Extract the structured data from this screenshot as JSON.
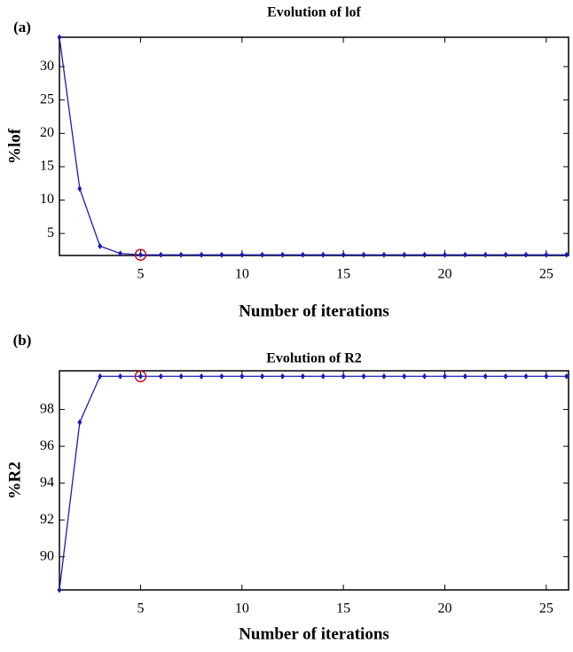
{
  "chart_data": [
    {
      "type": "line",
      "panel_label": "(a)",
      "title": "Evolution of lof",
      "xlabel": "Number of iterations",
      "ylabel": "%lof",
      "x": [
        1,
        2,
        3,
        4,
        5,
        6,
        7,
        8,
        9,
        10,
        11,
        12,
        13,
        14,
        15,
        16,
        17,
        18,
        19,
        20,
        21,
        22,
        23,
        24,
        25,
        26
      ],
      "series": [
        {
          "name": "lof",
          "color": "#1a1ab8",
          "values": [
            34.4,
            11.7,
            3.1,
            2.0,
            1.8,
            1.8,
            1.8,
            1.8,
            1.8,
            1.8,
            1.8,
            1.8,
            1.8,
            1.8,
            1.8,
            1.8,
            1.8,
            1.8,
            1.8,
            1.8,
            1.8,
            1.8,
            1.8,
            1.8,
            1.8,
            1.8
          ]
        }
      ],
      "xlim": [
        1,
        26.1
      ],
      "xticks": [
        5,
        10,
        15,
        20,
        25
      ],
      "ylim": [
        1.7,
        34.4
      ],
      "yticks": [
        5,
        10,
        15,
        20,
        25,
        30
      ],
      "highlight_x": 5,
      "highlight_color": "#c0102a"
    },
    {
      "type": "line",
      "panel_label": "(b)",
      "title": "Evolution of R2",
      "xlabel": "Number of iterations",
      "ylabel": "%R2",
      "x": [
        1,
        2,
        3,
        4,
        5,
        6,
        7,
        8,
        9,
        10,
        11,
        12,
        13,
        14,
        15,
        16,
        17,
        18,
        19,
        20,
        21,
        22,
        23,
        24,
        25,
        26
      ],
      "series": [
        {
          "name": "R2",
          "color": "#1a1ab8",
          "values": [
            88.2,
            97.3,
            99.8,
            99.8,
            99.8,
            99.8,
            99.8,
            99.8,
            99.8,
            99.8,
            99.8,
            99.8,
            99.8,
            99.8,
            99.8,
            99.8,
            99.8,
            99.8,
            99.8,
            99.8,
            99.8,
            99.8,
            99.8,
            99.8,
            99.8,
            99.8
          ]
        }
      ],
      "xlim": [
        1,
        26.1
      ],
      "xticks": [
        5,
        10,
        15,
        20,
        25
      ],
      "ylim": [
        88.2,
        100.1
      ],
      "yticks": [
        90,
        92,
        94,
        96,
        98
      ],
      "highlight_x": 5,
      "highlight_color": "#c0102a"
    }
  ]
}
